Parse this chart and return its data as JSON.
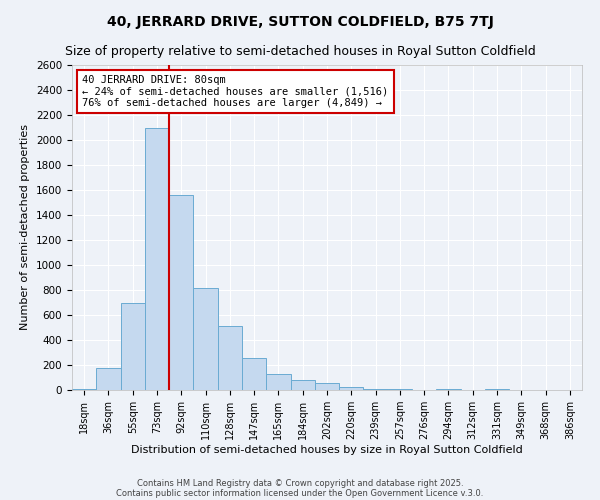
{
  "title": "40, JERRARD DRIVE, SUTTON COLDFIELD, B75 7TJ",
  "subtitle": "Size of property relative to semi-detached houses in Royal Sutton Coldfield",
  "xlabel": "Distribution of semi-detached houses by size in Royal Sutton Coldfield",
  "ylabel": "Number of semi-detached properties",
  "categories": [
    "18sqm",
    "36sqm",
    "55sqm",
    "73sqm",
    "92sqm",
    "110sqm",
    "128sqm",
    "147sqm",
    "165sqm",
    "184sqm",
    "202sqm",
    "220sqm",
    "239sqm",
    "257sqm",
    "276sqm",
    "294sqm",
    "312sqm",
    "331sqm",
    "349sqm",
    "368sqm",
    "386sqm"
  ],
  "values": [
    10,
    175,
    700,
    2100,
    1560,
    820,
    510,
    255,
    125,
    80,
    55,
    25,
    10,
    5,
    0,
    5,
    0,
    10,
    0,
    0,
    0
  ],
  "bar_color": "#c5d9ef",
  "bar_edgecolor": "#6aabd2",
  "redline_label": "40 JERRARD DRIVE: 80sqm",
  "annotation_line1": "← 24% of semi-detached houses are smaller (1,516)",
  "annotation_line2": "76% of semi-detached houses are larger (4,849) →",
  "annotation_box_color": "#cc0000",
  "ylim": [
    0,
    2600
  ],
  "yticks": [
    0,
    200,
    400,
    600,
    800,
    1000,
    1200,
    1400,
    1600,
    1800,
    2000,
    2200,
    2400,
    2600
  ],
  "background_color": "#eef2f8",
  "grid_color": "#ffffff",
  "title_fontsize": 10,
  "subtitle_fontsize": 9,
  "footer1": "Contains HM Land Registry data © Crown copyright and database right 2025.",
  "footer2": "Contains public sector information licensed under the Open Government Licence v.3.0."
}
